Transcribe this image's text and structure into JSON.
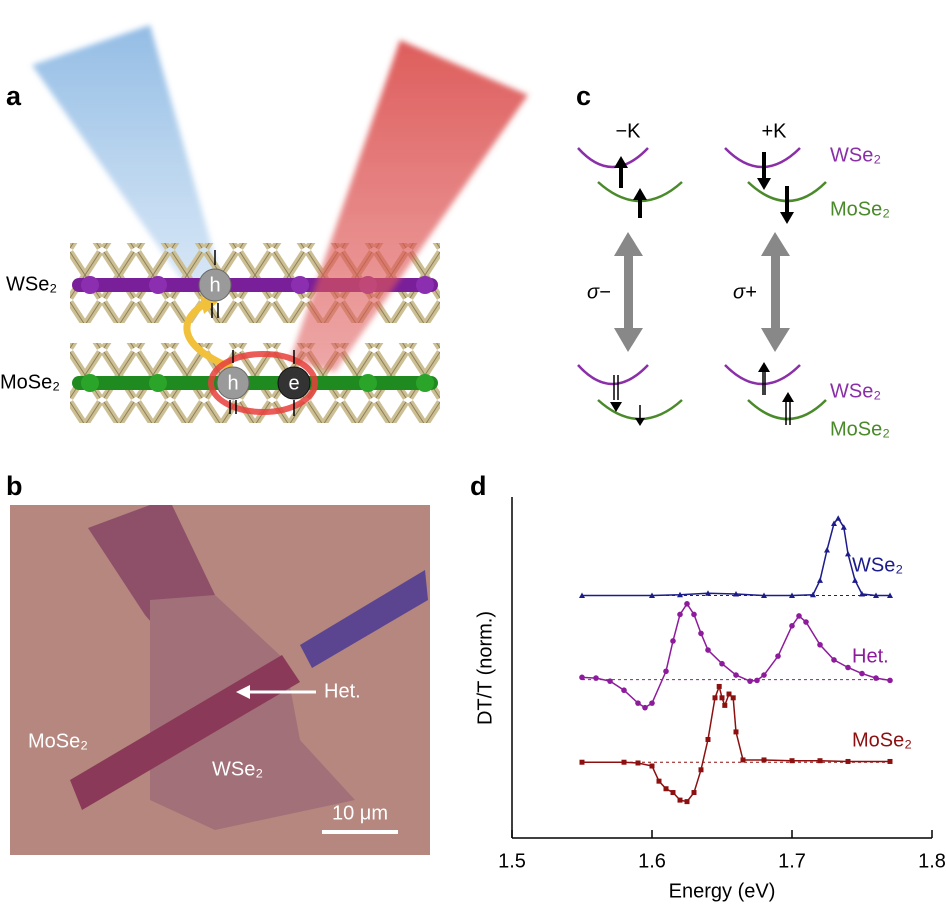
{
  "panels": {
    "a": {
      "label": "a",
      "layers": [
        "WSe₂",
        "MoSe₂"
      ],
      "carriers": [
        "h",
        "h",
        "e"
      ]
    },
    "b": {
      "label": "b",
      "labels": [
        "MoSe₂",
        "WSe₂",
        "Het."
      ],
      "scale_bar": "10 μm"
    },
    "c": {
      "label": "c",
      "valleys": [
        "−K",
        "+K"
      ],
      "layers": [
        "WSe₂",
        "MoSe₂"
      ],
      "polarizations": [
        "σ−",
        "σ+"
      ]
    },
    "d": {
      "label": "d"
    }
  },
  "chart_data": {
    "type": "line",
    "xlabel": "Energy (eV)",
    "ylabel": "DT/T (norm.)",
    "xlim": [
      1.5,
      1.8
    ],
    "xticks": [
      1.5,
      1.6,
      1.7,
      1.8
    ],
    "ylim": [
      0,
      4.5
    ],
    "series": [
      {
        "name": "WSe₂",
        "color": "#1c1c8a",
        "marker": "triangle",
        "baseline": 3.2,
        "x": [
          1.55,
          1.6,
          1.62,
          1.64,
          1.66,
          1.68,
          1.7,
          1.715,
          1.72,
          1.725,
          1.73,
          1.733,
          1.737,
          1.74,
          1.745,
          1.75,
          1.76,
          1.77
        ],
        "values": [
          3.2,
          3.2,
          3.21,
          3.23,
          3.22,
          3.2,
          3.2,
          3.21,
          3.4,
          3.8,
          4.15,
          4.22,
          4.1,
          3.75,
          3.4,
          3.22,
          3.2,
          3.2
        ]
      },
      {
        "name": "Het.",
        "color": "#8e1b9c",
        "marker": "circle",
        "baseline": 2.09,
        "x": [
          1.55,
          1.56,
          1.57,
          1.58,
          1.59,
          1.595,
          1.6,
          1.61,
          1.615,
          1.62,
          1.625,
          1.63,
          1.635,
          1.64,
          1.65,
          1.66,
          1.67,
          1.675,
          1.68,
          1.69,
          1.7,
          1.705,
          1.71,
          1.72,
          1.73,
          1.74,
          1.75,
          1.76,
          1.77
        ],
        "values": [
          2.12,
          2.11,
          2.07,
          1.95,
          1.78,
          1.72,
          1.78,
          2.2,
          2.6,
          2.95,
          3.09,
          2.95,
          2.7,
          2.48,
          2.3,
          2.15,
          2.07,
          2.08,
          2.15,
          2.4,
          2.8,
          2.93,
          2.85,
          2.55,
          2.35,
          2.25,
          2.17,
          2.11,
          2.08
        ]
      },
      {
        "name": "MoSe₂",
        "color": "#8c1010",
        "marker": "square",
        "baseline": 1.0,
        "x": [
          1.55,
          1.58,
          1.59,
          1.6,
          1.605,
          1.61,
          1.615,
          1.62,
          1.625,
          1.63,
          1.635,
          1.64,
          1.645,
          1.648,
          1.65,
          1.652,
          1.655,
          1.658,
          1.66,
          1.665,
          1.68,
          1.7,
          1.72,
          1.74,
          1.77
        ],
        "values": [
          1.0,
          1.0,
          0.99,
          0.95,
          0.75,
          0.65,
          0.6,
          0.5,
          0.48,
          0.6,
          0.9,
          1.3,
          1.85,
          2.0,
          1.85,
          1.75,
          1.9,
          1.85,
          1.4,
          1.03,
          1.03,
          1.02,
          1.02,
          1.01,
          1.01
        ]
      }
    ]
  }
}
